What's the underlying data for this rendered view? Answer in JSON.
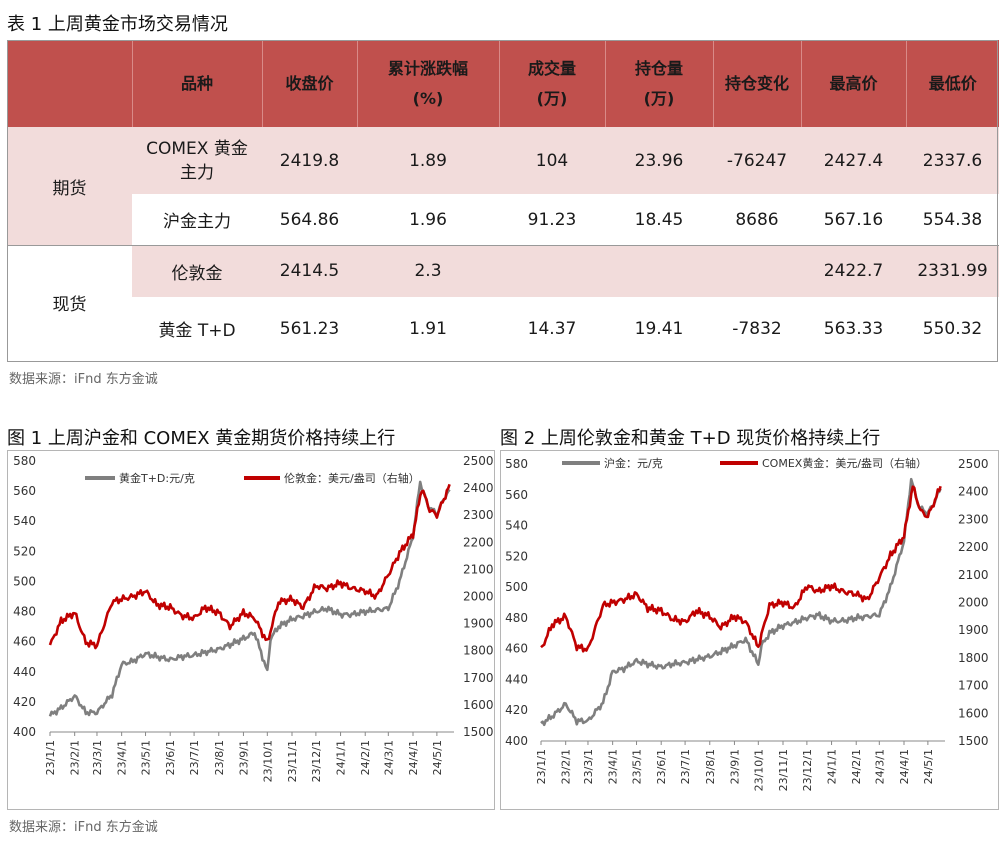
{
  "table": {
    "caption": "表 1  上周黄金市场交易情况",
    "headers": [
      "品种",
      "收盘价",
      "累计涨跌幅\n(%)",
      "成交量\n(万)",
      "持仓量\n(万)",
      "持仓变化",
      "最高价",
      "最低价"
    ],
    "groups": [
      {
        "category": "期货",
        "rows": [
          {
            "name": "COMEX 黄金\n主力",
            "values": [
              "2419.8",
              "1.89",
              "104",
              "23.96",
              "-76247",
              "2427.4",
              "2337.6"
            ]
          },
          {
            "name": "沪金主力",
            "values": [
              "564.86",
              "1.96",
              "91.23",
              "18.45",
              "8686",
              "567.16",
              "554.38"
            ]
          }
        ]
      },
      {
        "category": "现货",
        "rows": [
          {
            "name": "伦敦金",
            "values": [
              "2414.5",
              "2.3",
              "",
              "",
              "",
              "2422.7",
              "2331.99"
            ]
          },
          {
            "name": "黄金 T+D",
            "values": [
              "561.23",
              "1.91",
              "14.37",
              "19.41",
              "-7832",
              "563.33",
              "550.32"
            ]
          }
        ]
      }
    ],
    "source": "数据来源：iFnd 东方金诚"
  },
  "figures": [
    {
      "caption": "图 1  上周沪金和 COMEX 黄金期货价格持续上行"
    },
    {
      "caption": "图 2  上周伦敦金和黄金 T+D 现货价格持续上行"
    }
  ],
  "figures_source": "数据来源：iFnd 东方金诚",
  "colors": {
    "header": "#c0504d",
    "band": "#f2dcdb",
    "grey_series": "#7f7f7f",
    "red_series": "#c00000"
  },
  "chart_data": [
    {
      "type": "line",
      "x_ticks": [
        "23/1/1",
        "23/2/1",
        "23/3/1",
        "23/4/1",
        "23/5/1",
        "23/6/1",
        "23/7/1",
        "23/8/1",
        "23/9/1",
        "23/10/1",
        "23/11/1",
        "23/12/1",
        "24/1/1",
        "24/2/1",
        "24/3/1",
        "24/4/1",
        "24/5/1"
      ],
      "y_left": {
        "range": [
          400,
          580
        ],
        "ticks": [
          400,
          420,
          440,
          460,
          480,
          500,
          520,
          540,
          560,
          580
        ]
      },
      "y_right": {
        "range": [
          1500,
          2500
        ],
        "ticks": [
          1500,
          1600,
          1700,
          1800,
          1900,
          2000,
          2100,
          2200,
          2300,
          2400,
          2500
        ]
      },
      "legend_position": "top",
      "grid": false,
      "series": [
        {
          "name": "黄金T+D:元/克",
          "axis": "left",
          "color": "#7f7f7f",
          "x": [
            "23/1/1",
            "23/1/15",
            "23/2/1",
            "23/2/15",
            "23/3/1",
            "23/3/20",
            "23/4/1",
            "23/4/15",
            "23/5/1",
            "23/5/15",
            "23/6/1",
            "23/6/15",
            "23/7/1",
            "23/7/15",
            "23/8/1",
            "23/8/15",
            "23/9/1",
            "23/9/15",
            "23/10/1",
            "23/10/5",
            "23/10/15",
            "23/11/1",
            "23/11/15",
            "23/12/1",
            "23/12/15",
            "24/1/1",
            "24/1/15",
            "24/2/1",
            "24/2/15",
            "24/3/1",
            "24/3/15",
            "24/4/1",
            "24/4/10",
            "24/4/20",
            "24/5/1",
            "24/5/10",
            "24/5/17"
          ],
          "y": [
            411,
            416,
            424,
            413,
            413,
            425,
            445,
            447,
            452,
            450,
            448,
            450,
            451,
            453,
            455,
            458,
            462,
            466,
            440,
            462,
            470,
            475,
            477,
            480,
            482,
            478,
            478,
            480,
            481,
            482,
            500,
            530,
            566,
            550,
            545,
            555,
            561
          ]
        },
        {
          "name": "伦敦金：美元/盎司（右轴）",
          "axis": "right",
          "color": "#c00000",
          "x": [
            "23/1/1",
            "23/1/15",
            "23/2/1",
            "23/2/15",
            "23/3/1",
            "23/3/20",
            "23/4/1",
            "23/4/15",
            "23/5/1",
            "23/5/15",
            "23/6/1",
            "23/6/15",
            "23/7/1",
            "23/7/15",
            "23/8/1",
            "23/8/15",
            "23/9/1",
            "23/9/15",
            "23/10/1",
            "23/10/15",
            "23/11/1",
            "23/11/15",
            "23/12/1",
            "23/12/15",
            "24/1/1",
            "24/1/15",
            "24/2/1",
            "24/2/15",
            "24/3/1",
            "24/3/15",
            "24/4/1",
            "24/4/12",
            "24/4/22",
            "24/5/1",
            "24/5/10",
            "24/5/17"
          ],
          "y": [
            1820,
            1910,
            1940,
            1830,
            1820,
            1980,
            1990,
            2000,
            2020,
            1970,
            1960,
            1930,
            1920,
            1960,
            1940,
            1890,
            1940,
            1920,
            1830,
            1980,
            1990,
            1960,
            2040,
            2030,
            2050,
            2030,
            2020,
            2000,
            2080,
            2160,
            2230,
            2400,
            2320,
            2300,
            2360,
            2414
          ]
        }
      ]
    },
    {
      "type": "line",
      "x_ticks": [
        "23/1/1",
        "23/2/1",
        "23/3/1",
        "23/4/1",
        "23/5/1",
        "23/6/1",
        "23/7/1",
        "23/8/1",
        "23/9/1",
        "23/10/1",
        "23/11/1",
        "23/12/1",
        "24/1/1",
        "24/2/1",
        "24/3/1",
        "24/4/1",
        "24/5/1"
      ],
      "y_left": {
        "range": [
          400,
          580
        ],
        "ticks": [
          400,
          420,
          440,
          460,
          480,
          500,
          520,
          540,
          560,
          580
        ]
      },
      "y_right": {
        "range": [
          1500,
          2500
        ],
        "ticks": [
          1500,
          1600,
          1700,
          1800,
          1900,
          2000,
          2100,
          2200,
          2300,
          2400,
          2500
        ]
      },
      "legend_position": "top",
      "grid": false,
      "series": [
        {
          "name": "沪金：元/克",
          "axis": "left",
          "color": "#7f7f7f",
          "x": [
            "23/1/1",
            "23/1/15",
            "23/2/1",
            "23/2/15",
            "23/3/1",
            "23/3/20",
            "23/4/1",
            "23/4/15",
            "23/5/1",
            "23/5/15",
            "23/6/1",
            "23/6/15",
            "23/7/1",
            "23/7/15",
            "23/8/1",
            "23/8/15",
            "23/9/1",
            "23/9/15",
            "23/10/1",
            "23/10/5",
            "23/10/15",
            "23/11/1",
            "23/11/15",
            "23/12/1",
            "23/12/15",
            "24/1/1",
            "24/1/15",
            "24/2/1",
            "24/2/15",
            "24/3/1",
            "24/3/15",
            "24/4/1",
            "24/4/10",
            "24/4/20",
            "24/5/1",
            "24/5/10",
            "24/5/17"
          ],
          "y": [
            411,
            416,
            424,
            413,
            413,
            425,
            445,
            447,
            452,
            450,
            448,
            450,
            451,
            453,
            455,
            458,
            462,
            466,
            450,
            462,
            470,
            475,
            477,
            480,
            482,
            478,
            478,
            480,
            481,
            482,
            500,
            530,
            570,
            552,
            548,
            556,
            564
          ]
        },
        {
          "name": "COMEX黄金：美元/盎司（右轴）",
          "axis": "right",
          "color": "#c00000",
          "x": [
            "23/1/1",
            "23/1/15",
            "23/2/1",
            "23/2/15",
            "23/3/1",
            "23/3/20",
            "23/4/1",
            "23/4/15",
            "23/5/1",
            "23/5/15",
            "23/6/1",
            "23/6/15",
            "23/7/1",
            "23/7/15",
            "23/8/1",
            "23/8/15",
            "23/9/1",
            "23/9/15",
            "23/10/1",
            "23/10/15",
            "23/11/1",
            "23/11/15",
            "23/12/1",
            "23/12/15",
            "24/1/1",
            "24/1/15",
            "24/2/1",
            "24/2/15",
            "24/3/1",
            "24/3/15",
            "24/4/1",
            "24/4/12",
            "24/4/22",
            "24/5/1",
            "24/5/10",
            "24/5/17"
          ],
          "y": [
            1830,
            1920,
            1950,
            1840,
            1830,
            1990,
            2000,
            2010,
            2030,
            1980,
            1970,
            1940,
            1930,
            1970,
            1950,
            1910,
            1950,
            1930,
            1840,
            1990,
            2000,
            1980,
            2060,
            2040,
            2060,
            2040,
            2030,
            2010,
            2090,
            2170,
            2240,
            2420,
            2330,
            2310,
            2370,
            2420
          ]
        }
      ]
    }
  ]
}
